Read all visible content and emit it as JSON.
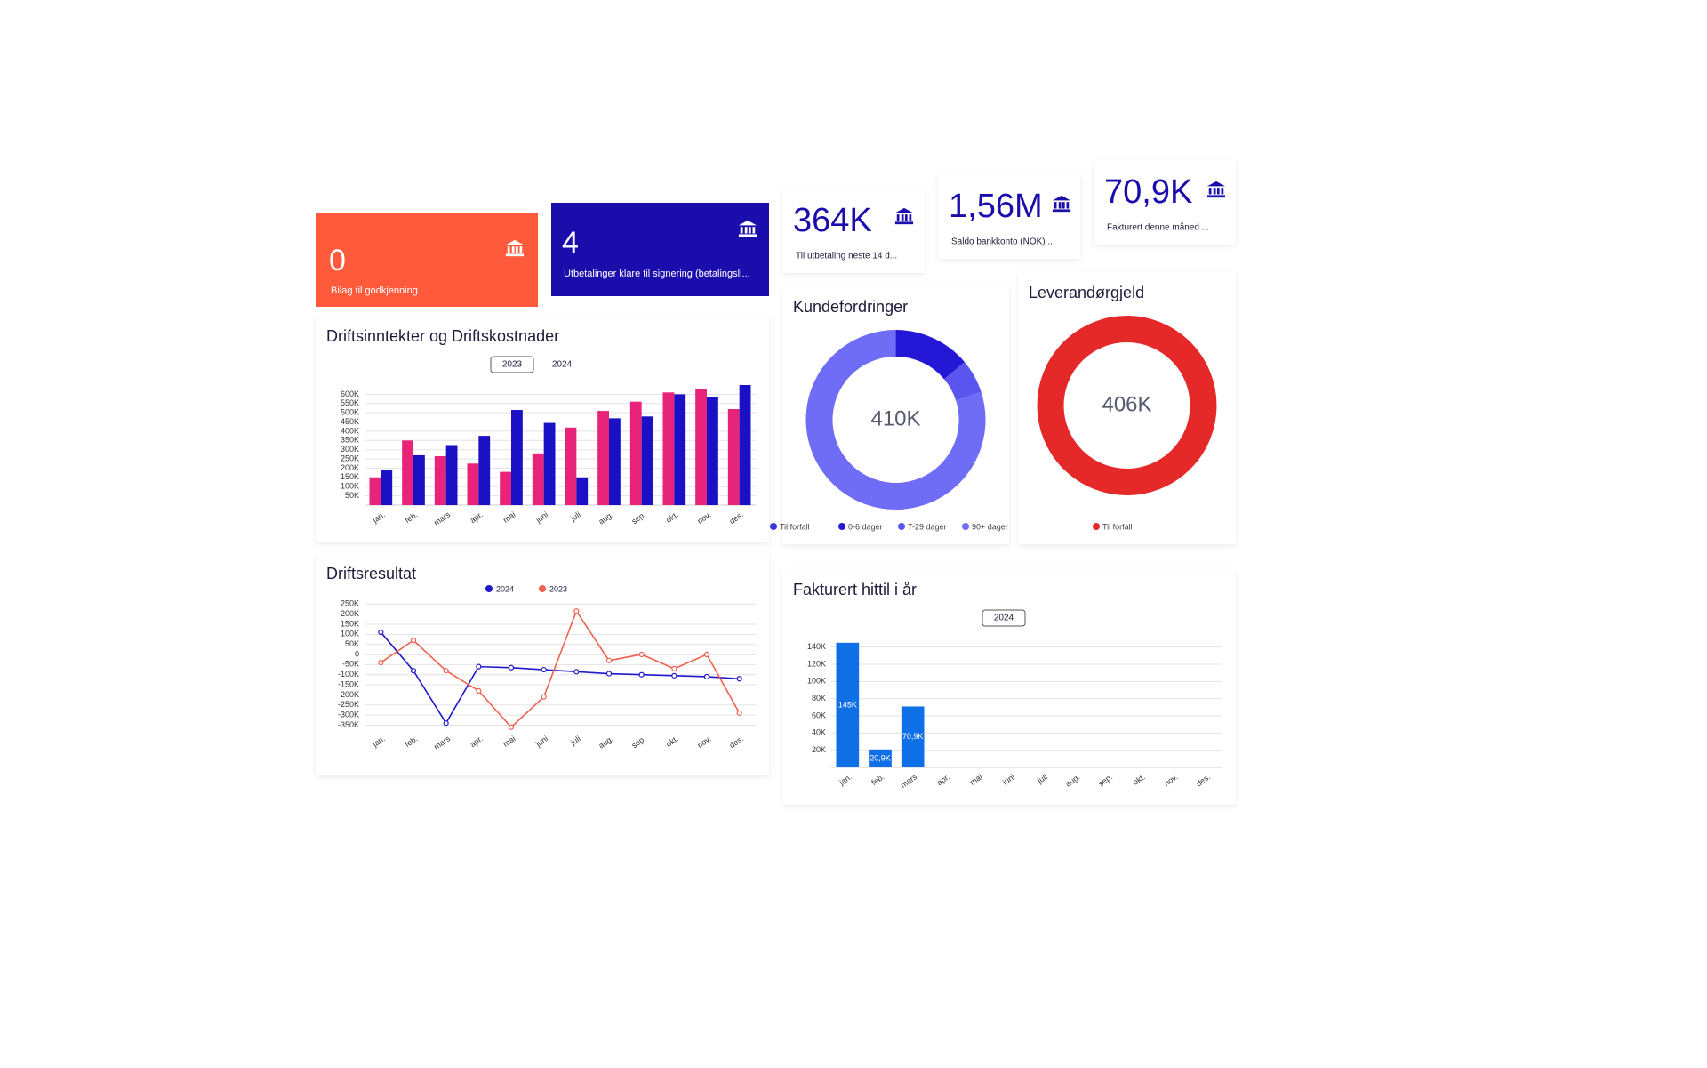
{
  "kpis": [
    {
      "value": "0",
      "label": "Bilag til godkjenning"
    },
    {
      "value": "4",
      "label": "Utbetalinger klare til signering (betalingsli..."
    },
    {
      "value": "364K",
      "label": "Til utbetaling neste 14 d..."
    },
    {
      "value": "1,56M",
      "label": "Saldo bankkonto (NOK) ..."
    },
    {
      "value": "70,9K",
      "label": "Fakturert denne måned ..."
    }
  ],
  "chart_data": [
    {
      "type": "bar",
      "title": "Driftsinntekter og Driftskostnader",
      "categories": [
        "jan.",
        "feb.",
        "mars",
        "apr.",
        "mai",
        "juni",
        "juli",
        "aug.",
        "sep.",
        "okt.",
        "nov.",
        "des."
      ],
      "series": [
        {
          "name": "2023",
          "color": "#e8237a",
          "values": [
            150000,
            350000,
            265000,
            225000,
            180000,
            280000,
            420000,
            510000,
            560000,
            610000,
            630000,
            520000
          ]
        },
        {
          "name": "2024",
          "color": "#1a10c4",
          "values": [
            190000,
            270000,
            325000,
            375000,
            515000,
            445000,
            150000,
            470000,
            480000,
            600000,
            585000,
            650000
          ]
        }
      ],
      "ylim": [
        0,
        650000
      ],
      "yticks": [
        {
          "value": 50000,
          "label": "50K"
        },
        {
          "value": 100000,
          "label": "100K"
        },
        {
          "value": 150000,
          "label": "150K"
        },
        {
          "value": 200000,
          "label": "200K"
        },
        {
          "value": 250000,
          "label": "250K"
        },
        {
          "value": 300000,
          "label": "300K"
        },
        {
          "value": 350000,
          "label": "350K"
        },
        {
          "value": 400000,
          "label": "400K"
        },
        {
          "value": 450000,
          "label": "450K"
        },
        {
          "value": 500000,
          "label": "500K"
        },
        {
          "value": 550000,
          "label": "550K"
        },
        {
          "value": 600000,
          "label": "600K"
        }
      ],
      "grid": true
    },
    {
      "type": "pie",
      "title": "Kundefordringer",
      "center_label": "410K",
      "donut": true,
      "categories": [
        "Til forfall",
        "0-6 dager",
        "7-29 dager",
        "90+ dager"
      ],
      "values": [
        0,
        57,
        25,
        328
      ],
      "colors": [
        "#3b36e0",
        "#2418d6",
        "#5a55ef",
        "#6f6cf6"
      ]
    },
    {
      "type": "pie",
      "title": "Leverandørgjeld",
      "center_label": "406K",
      "donut": true,
      "categories": [
        "Til forfall"
      ],
      "values": [
        406
      ],
      "colors": [
        "#e52828"
      ]
    },
    {
      "type": "line",
      "title": "Driftsresultat",
      "categories": [
        "jan.",
        "feb.",
        "mars",
        "apr.",
        "mai",
        "juni",
        "juli",
        "aug.",
        "sep.",
        "okt.",
        "nov.",
        "des."
      ],
      "series": [
        {
          "name": "2024",
          "color": "#1f18c9",
          "values": [
            110000,
            -80000,
            -340000,
            -60000,
            -65000,
            -75000,
            -85000,
            -95000,
            -100000,
            -105000,
            -110000,
            -120000
          ]
        },
        {
          "name": "2023",
          "color": "#f0604e",
          "values": [
            -40000,
            70000,
            -80000,
            -180000,
            -360000,
            -210000,
            215000,
            -30000,
            0,
            -70000,
            0,
            -290000
          ]
        }
      ],
      "ylim": [
        -370000,
        260000
      ],
      "yticks": [
        {
          "value": -350000,
          "label": "-350K"
        },
        {
          "value": -300000,
          "label": "-300K"
        },
        {
          "value": -250000,
          "label": "-250K"
        },
        {
          "value": -200000,
          "label": "-200K"
        },
        {
          "value": -150000,
          "label": "-150K"
        },
        {
          "value": -100000,
          "label": "-100K"
        },
        {
          "value": -50000,
          "label": "-50K"
        },
        0,
        {
          "value": 50000,
          "label": "50K"
        },
        {
          "value": 100000,
          "label": "100K"
        },
        {
          "value": 150000,
          "label": "150K"
        },
        {
          "value": 200000,
          "label": "200K"
        },
        {
          "value": 250000,
          "label": "250K"
        }
      ],
      "grid": true
    },
    {
      "type": "bar",
      "title": "Fakturert hittil i år",
      "categories": [
        "jan.",
        "feb.",
        "mars",
        "apr.",
        "mai",
        "juni",
        "juli",
        "aug.",
        "sep.",
        "okt.",
        "nov.",
        "des."
      ],
      "series": [
        {
          "name": "2024",
          "color": "#0f6fe6",
          "values": [
            145000,
            20900,
            70900,
            null,
            null,
            null,
            null,
            null,
            null,
            null,
            null,
            null
          ],
          "value_labels": [
            "145K",
            "20,9K",
            "70,9K",
            null,
            null,
            null,
            null,
            null,
            null,
            null,
            null,
            null
          ]
        }
      ],
      "ylim": [
        0,
        150000
      ],
      "yticks": [
        {
          "value": 20000,
          "label": "20K"
        },
        {
          "value": 40000,
          "label": "40K"
        },
        {
          "value": 60000,
          "label": "60K"
        },
        {
          "value": 80000,
          "label": "80K"
        },
        {
          "value": 100000,
          "label": "100K"
        },
        {
          "value": 120000,
          "label": "120K"
        },
        {
          "value": 140000,
          "label": "140K"
        }
      ],
      "grid": true
    }
  ]
}
